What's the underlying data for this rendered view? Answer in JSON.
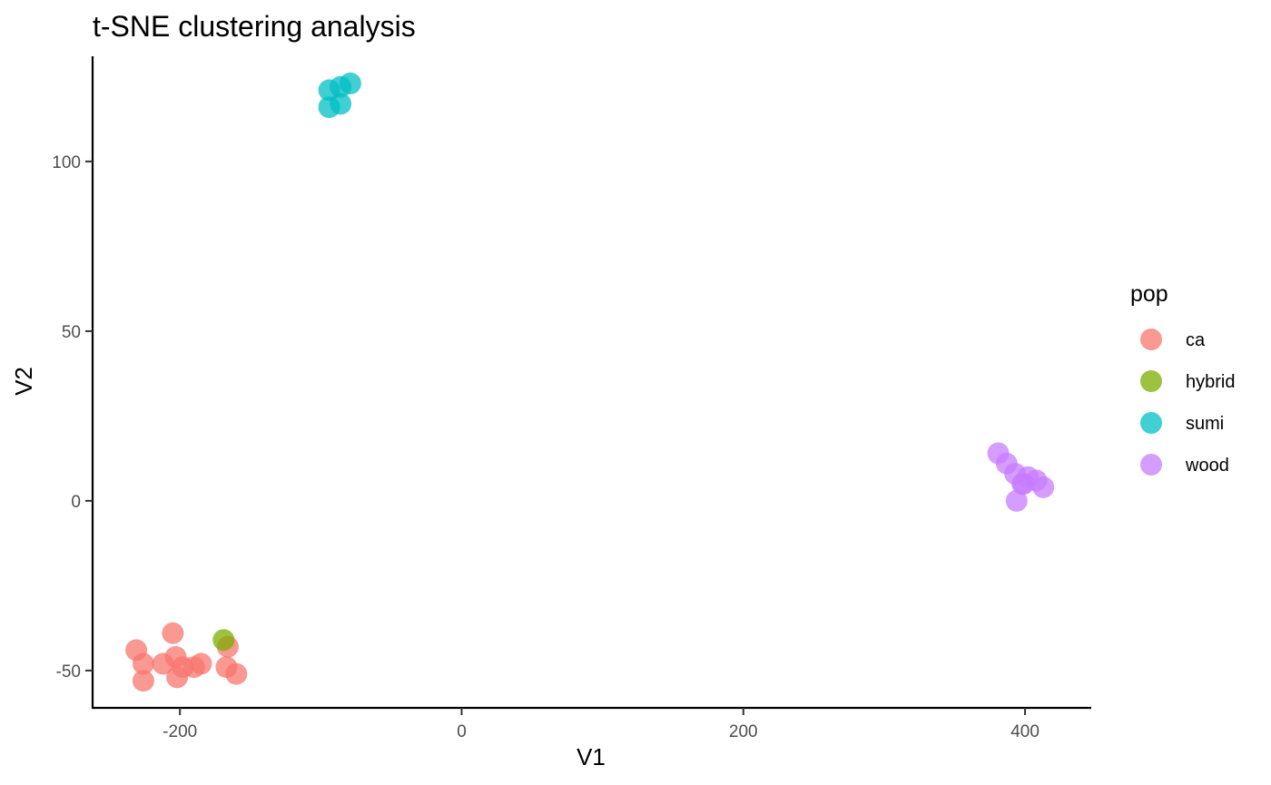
{
  "chart_data": {
    "type": "scatter",
    "title": "t-SNE clustering analysis",
    "xlabel": "V1",
    "ylabel": "V2",
    "xlim": [
      -262,
      447
    ],
    "ylim": [
      -61,
      131
    ],
    "xticks": [
      -200,
      0,
      200,
      400
    ],
    "yticks": [
      -50,
      0,
      50,
      100
    ],
    "xtick_labels": [
      "-200",
      "0",
      "200",
      "400"
    ],
    "ytick_labels": [
      "-50",
      "0",
      "50",
      "100"
    ],
    "grid": false,
    "legend": {
      "title": "pop",
      "position": "right"
    },
    "series": [
      {
        "name": "ca",
        "color": "#F8766D",
        "points": [
          [
            -231,
            -44
          ],
          [
            -226,
            -48
          ],
          [
            -226,
            -53
          ],
          [
            -212,
            -48
          ],
          [
            -205,
            -39
          ],
          [
            -203,
            -46
          ],
          [
            -202,
            -52
          ],
          [
            -198,
            -49
          ],
          [
            -190,
            -49
          ],
          [
            -185,
            -48
          ],
          [
            -166,
            -43
          ],
          [
            -167,
            -49
          ],
          [
            -160,
            -51
          ]
        ]
      },
      {
        "name": "hybrid",
        "color": "#7CAE00",
        "points": [
          [
            -169,
            -41
          ]
        ]
      },
      {
        "name": "sumi",
        "color": "#00BFC4",
        "points": [
          [
            -94,
            121
          ],
          [
            -86,
            122
          ],
          [
            -79,
            123
          ],
          [
            -86,
            117
          ],
          [
            -94,
            116
          ]
        ]
      },
      {
        "name": "wood",
        "color": "#C77CFF",
        "points": [
          [
            381,
            14
          ],
          [
            387,
            11
          ],
          [
            393,
            8
          ],
          [
            399,
            5
          ],
          [
            402,
            7
          ],
          [
            408,
            6
          ],
          [
            413,
            4
          ],
          [
            398,
            5
          ],
          [
            394,
            0
          ]
        ]
      }
    ]
  }
}
